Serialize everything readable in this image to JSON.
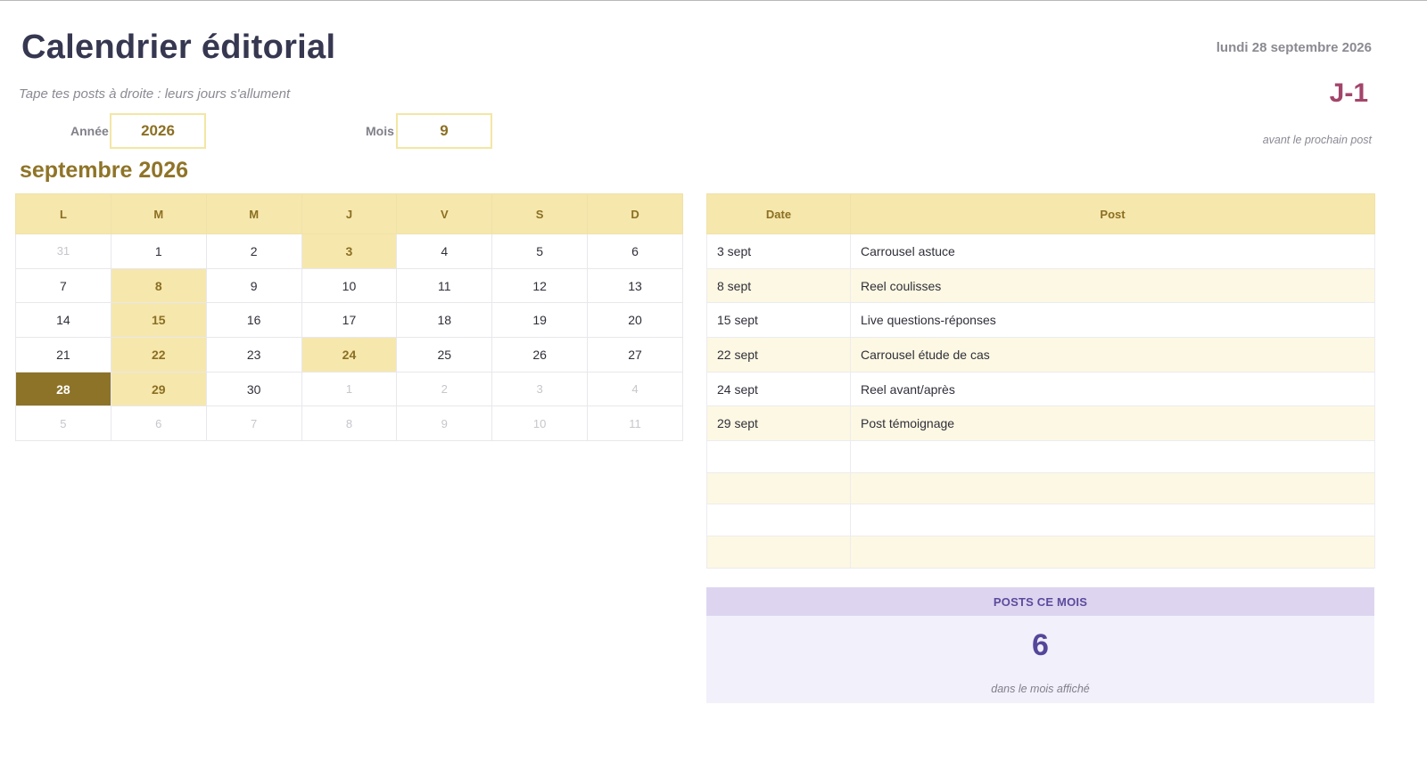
{
  "header": {
    "title": "Calendrier éditorial",
    "subtitle": "Tape tes posts à droite : leurs jours s'allument",
    "today_label": "lundi 28 septembre 2026",
    "countdown": "J-1",
    "countdown_note": "avant le prochain post"
  },
  "params": {
    "year_label": "Année",
    "year_value": "2026",
    "month_label": "Mois",
    "month_value": "9"
  },
  "calendar": {
    "month_title": "septembre 2026",
    "weekdays": [
      "L",
      "M",
      "M",
      "J",
      "V",
      "S",
      "D"
    ],
    "weeks": [
      [
        {
          "day": "31",
          "state": "other"
        },
        {
          "day": "1",
          "state": "normal"
        },
        {
          "day": "2",
          "state": "normal"
        },
        {
          "day": "3",
          "state": "post"
        },
        {
          "day": "4",
          "state": "normal"
        },
        {
          "day": "5",
          "state": "normal"
        },
        {
          "day": "6",
          "state": "normal"
        }
      ],
      [
        {
          "day": "7",
          "state": "normal"
        },
        {
          "day": "8",
          "state": "post"
        },
        {
          "day": "9",
          "state": "normal"
        },
        {
          "day": "10",
          "state": "normal"
        },
        {
          "day": "11",
          "state": "normal"
        },
        {
          "day": "12",
          "state": "normal"
        },
        {
          "day": "13",
          "state": "normal"
        }
      ],
      [
        {
          "day": "14",
          "state": "normal"
        },
        {
          "day": "15",
          "state": "post"
        },
        {
          "day": "16",
          "state": "normal"
        },
        {
          "day": "17",
          "state": "normal"
        },
        {
          "day": "18",
          "state": "normal"
        },
        {
          "day": "19",
          "state": "normal"
        },
        {
          "day": "20",
          "state": "normal"
        }
      ],
      [
        {
          "day": "21",
          "state": "normal"
        },
        {
          "day": "22",
          "state": "post"
        },
        {
          "day": "23",
          "state": "normal"
        },
        {
          "day": "24",
          "state": "post"
        },
        {
          "day": "25",
          "state": "normal"
        },
        {
          "day": "26",
          "state": "normal"
        },
        {
          "day": "27",
          "state": "normal"
        }
      ],
      [
        {
          "day": "28",
          "state": "today"
        },
        {
          "day": "29",
          "state": "post"
        },
        {
          "day": "30",
          "state": "normal"
        },
        {
          "day": "1",
          "state": "other"
        },
        {
          "day": "2",
          "state": "other"
        },
        {
          "day": "3",
          "state": "other"
        },
        {
          "day": "4",
          "state": "other"
        }
      ],
      [
        {
          "day": "5",
          "state": "other"
        },
        {
          "day": "6",
          "state": "other"
        },
        {
          "day": "7",
          "state": "other"
        },
        {
          "day": "8",
          "state": "other"
        },
        {
          "day": "9",
          "state": "other"
        },
        {
          "day": "10",
          "state": "other"
        },
        {
          "day": "11",
          "state": "other"
        }
      ]
    ]
  },
  "posts": {
    "headers": [
      "Date",
      "Post"
    ],
    "rows": [
      {
        "date": "3 sept",
        "post": "Carrousel astuce"
      },
      {
        "date": "8 sept",
        "post": "Reel coulisses"
      },
      {
        "date": "15 sept",
        "post": "Live questions-réponses"
      },
      {
        "date": "22 sept",
        "post": "Carrousel étude de cas"
      },
      {
        "date": "24 sept",
        "post": "Reel avant/après"
      },
      {
        "date": "29 sept",
        "post": "Post témoignage"
      },
      {
        "date": "",
        "post": ""
      },
      {
        "date": "",
        "post": ""
      },
      {
        "date": "",
        "post": ""
      },
      {
        "date": "",
        "post": ""
      }
    ]
  },
  "counter": {
    "heading": "POSTS CE MOIS",
    "value": "6",
    "note": "dans le mois affiché"
  },
  "colors": {
    "accent_gold": "#8c7328",
    "highlight_yellow": "#f6e7ad",
    "countdown_rose": "#a3456b",
    "counter_violet": "#54479a"
  }
}
